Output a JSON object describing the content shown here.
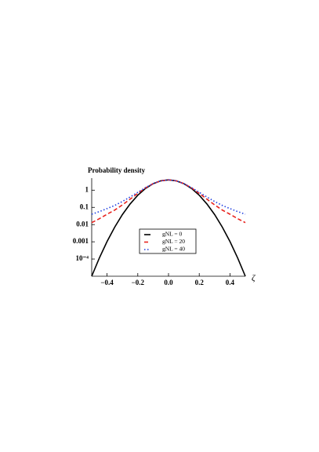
{
  "chart_data": {
    "type": "line",
    "title": "Probability density",
    "x_label": "ζ",
    "log_y": true,
    "x": [
      -0.5,
      -0.45,
      -0.4,
      -0.35,
      -0.3,
      -0.25,
      -0.2,
      -0.15,
      -0.1,
      -0.05,
      0,
      0.05,
      0.1,
      0.15,
      0.2,
      0.25,
      0.3,
      0.35,
      0.4,
      0.45,
      0.5
    ],
    "series": [
      {
        "name": "gNL = 0",
        "color": "#000000",
        "dash": "solid",
        "values": [
          1e-05,
          0.000116,
          0.00104,
          0.00718,
          0.0384,
          0.158,
          0.506,
          1.25,
          2.38,
          3.5,
          3.98,
          3.5,
          2.38,
          1.25,
          0.506,
          0.158,
          0.0384,
          0.00718,
          0.00104,
          0.000116,
          1e-05
        ]
      },
      {
        "name": "gNL = 20",
        "color": "#e8231e",
        "dash": "dashed",
        "values": [
          0.013,
          0.022,
          0.04,
          0.07,
          0.14,
          0.3,
          0.65,
          1.35,
          2.4,
          3.5,
          3.98,
          3.5,
          2.4,
          1.35,
          0.65,
          0.3,
          0.14,
          0.07,
          0.04,
          0.022,
          0.013
        ]
      },
      {
        "name": "gNL = 40",
        "color": "#1f3fe0",
        "dash": "dotted",
        "values": [
          0.04,
          0.057,
          0.085,
          0.13,
          0.22,
          0.4,
          0.75,
          1.4,
          2.4,
          3.5,
          3.98,
          3.5,
          2.4,
          1.4,
          0.75,
          0.4,
          0.22,
          0.13,
          0.085,
          0.057,
          0.04
        ]
      }
    ],
    "xlim": [
      -0.5,
      0.5
    ],
    "xticks": [
      {
        "value": -0.4,
        "label": "−0.4"
      },
      {
        "value": -0.2,
        "label": "−0.2"
      },
      {
        "value": 0,
        "label": "0.0"
      },
      0.2,
      0.4
    ],
    "ylim": [
      1e-05,
      5
    ],
    "yticks": [
      1,
      0.1,
      0.01,
      0.001,
      {
        "value": 0.0001,
        "label": "10⁻⁴"
      }
    ]
  }
}
